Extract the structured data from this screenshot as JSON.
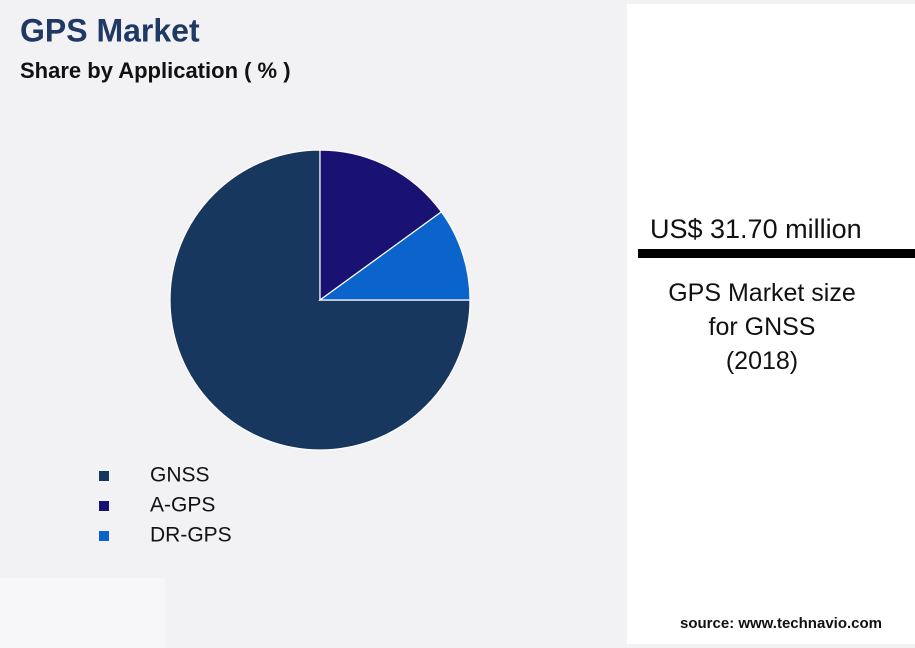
{
  "chart_data": {
    "type": "pie",
    "title": "GPS Market",
    "subtitle": "Share by Application ( % )",
    "categories": [
      "GNSS",
      "A-GPS",
      "DR-GPS"
    ],
    "values": [
      75,
      15,
      10
    ],
    "colors": [
      "#17375e",
      "#1a1273",
      "#0a64cc"
    ]
  },
  "side_panel": {
    "value": "US$ 31.70 million",
    "description": [
      "GPS Market size",
      "for GNSS",
      "(2018)"
    ]
  },
  "source": "source: www.technavio.com"
}
